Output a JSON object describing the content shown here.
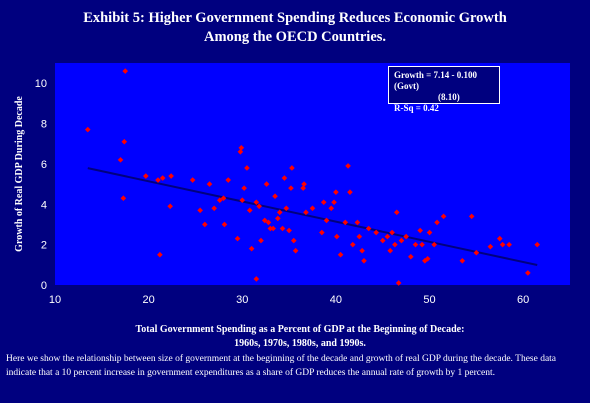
{
  "title": "Exhibit 5: Higher Government Spending Reduces Economic Growth Among the OECD Countries.",
  "chart_data": {
    "type": "scatter",
    "title": "Exhibit 5: Higher Government Spending Reduces Economic Growth Among the OECD Countries.",
    "xlabel_line1": "Total Government Spending as a Percent of GDP at the Beginning of Decade:",
    "xlabel_line2": "1960s, 1970s, 1980s, and 1990s.",
    "ylabel": "Growth of Real GDP During Decade",
    "xlim": [
      10,
      65
    ],
    "ylim": [
      0,
      11
    ],
    "x_ticks": [
      "10",
      "20",
      "30",
      "40",
      "50",
      "60"
    ],
    "x_tick_values": [
      10,
      20,
      30,
      40,
      50,
      60
    ],
    "y_ticks": [
      "0",
      "2",
      "4",
      "6",
      "8",
      "10"
    ],
    "y_tick_values": [
      0,
      2,
      4,
      6,
      8,
      10
    ],
    "grid": false,
    "marker_color": "#ff0000",
    "trendline_color": "#00007f",
    "plot_background": "#0000ff",
    "trendline": {
      "intercept": 7.14,
      "slope": -0.1,
      "x_range": [
        13.5,
        61.5
      ]
    },
    "equation": {
      "line1": "Growth = 7.14 - 0.100 (Govt)",
      "line2": "(8.10)",
      "line3": "R-Sq = 0.42"
    },
    "points": [
      [
        13.5,
        7.7
      ],
      [
        17.0,
        6.2
      ],
      [
        17.3,
        4.3
      ],
      [
        17.4,
        7.1
      ],
      [
        17.5,
        10.6
      ],
      [
        19.7,
        5.4
      ],
      [
        21.0,
        5.2
      ],
      [
        21.5,
        5.3
      ],
      [
        21.2,
        1.5
      ],
      [
        22.3,
        3.9
      ],
      [
        22.4,
        5.4
      ],
      [
        24.7,
        5.2
      ],
      [
        25.5,
        3.7
      ],
      [
        26.0,
        3.0
      ],
      [
        26.5,
        5.0
      ],
      [
        27.0,
        3.8
      ],
      [
        27.6,
        4.2
      ],
      [
        28.0,
        4.3
      ],
      [
        28.1,
        3.0
      ],
      [
        28.5,
        5.2
      ],
      [
        29.5,
        2.3
      ],
      [
        29.8,
        6.6
      ],
      [
        29.9,
        6.8
      ],
      [
        30.0,
        4.2
      ],
      [
        30.2,
        4.8
      ],
      [
        30.5,
        5.8
      ],
      [
        30.8,
        3.7
      ],
      [
        31.0,
        1.8
      ],
      [
        31.5,
        0.3
      ],
      [
        31.5,
        4.1
      ],
      [
        31.8,
        3.9
      ],
      [
        32.0,
        2.2
      ],
      [
        32.4,
        3.2
      ],
      [
        32.6,
        5.0
      ],
      [
        32.8,
        3.1
      ],
      [
        33.0,
        2.8
      ],
      [
        33.3,
        2.8
      ],
      [
        33.5,
        4.4
      ],
      [
        33.8,
        3.3
      ],
      [
        34.0,
        3.6
      ],
      [
        34.3,
        2.8
      ],
      [
        34.5,
        5.3
      ],
      [
        34.7,
        3.8
      ],
      [
        35.0,
        2.7
      ],
      [
        35.2,
        4.8
      ],
      [
        35.3,
        5.8
      ],
      [
        35.5,
        2.2
      ],
      [
        35.7,
        1.7
      ],
      [
        36.5,
        4.8
      ],
      [
        36.6,
        5.0
      ],
      [
        36.8,
        3.6
      ],
      [
        37.5,
        3.8
      ],
      [
        38.5,
        2.6
      ],
      [
        38.7,
        4.1
      ],
      [
        39.0,
        3.2
      ],
      [
        39.5,
        3.8
      ],
      [
        39.8,
        4.1
      ],
      [
        40.0,
        4.6
      ],
      [
        40.1,
        2.4
      ],
      [
        40.5,
        1.5
      ],
      [
        41.0,
        3.1
      ],
      [
        41.3,
        5.9
      ],
      [
        41.5,
        4.6
      ],
      [
        41.8,
        2.0
      ],
      [
        42.3,
        3.1
      ],
      [
        42.5,
        2.4
      ],
      [
        42.8,
        1.7
      ],
      [
        43.0,
        1.2
      ],
      [
        43.5,
        2.8
      ],
      [
        44.3,
        2.6
      ],
      [
        45.0,
        2.2
      ],
      [
        45.5,
        2.4
      ],
      [
        45.8,
        1.7
      ],
      [
        46.0,
        2.6
      ],
      [
        46.3,
        2.0
      ],
      [
        46.5,
        3.6
      ],
      [
        47.0,
        2.2
      ],
      [
        47.5,
        2.4
      ],
      [
        48.0,
        1.4
      ],
      [
        48.5,
        2.0
      ],
      [
        49.0,
        2.7
      ],
      [
        49.2,
        2.0
      ],
      [
        49.5,
        1.2
      ],
      [
        49.8,
        1.3
      ],
      [
        50.0,
        2.6
      ],
      [
        50.5,
        2.0
      ],
      [
        50.8,
        3.1
      ],
      [
        51.5,
        3.4
      ],
      [
        53.5,
        1.2
      ],
      [
        54.5,
        3.4
      ],
      [
        55.0,
        1.6
      ],
      [
        56.5,
        1.9
      ],
      [
        57.5,
        2.3
      ],
      [
        57.8,
        2.0
      ],
      [
        58.5,
        2.0
      ],
      [
        60.5,
        0.6
      ],
      [
        61.5,
        2.0
      ],
      [
        46.7,
        0.1
      ]
    ]
  },
  "note": "Here we show the relationship between size of government at the beginning of the decade and growth of real GDP during the decade.  These data indicate that a 10 percent increase in government expenditures as a share of GDP reduces the annual rate of growth by 1 percent."
}
